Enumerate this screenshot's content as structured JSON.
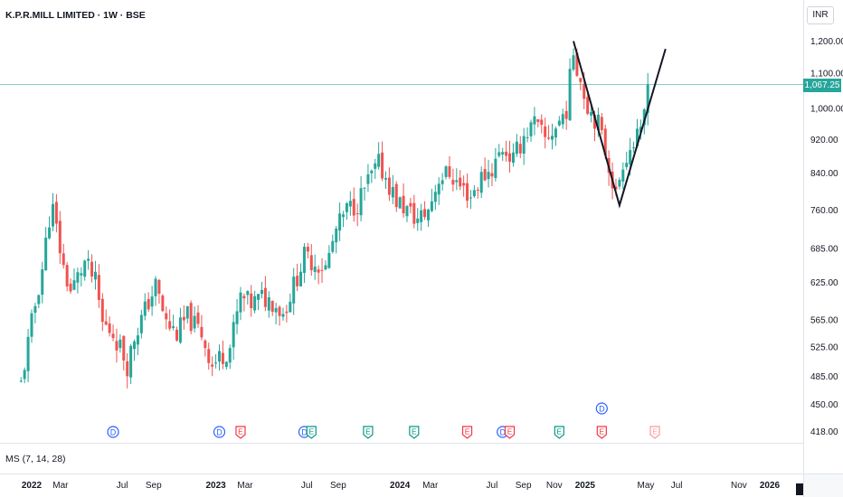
{
  "header": {
    "title": "K.P.R.MILL LIMITED · 1W · BSE"
  },
  "axis": {
    "currency": "INR"
  },
  "last_price": {
    "label": "1,067.25",
    "value": 1067.25
  },
  "indicator": {
    "label": "MS (7, 14, 28)"
  },
  "colors": {
    "up": "#26a69a",
    "down": "#ef5350",
    "last_line": "#26a69a",
    "event": "#2962ff",
    "drawing": "#131722"
  },
  "chart_data": {
    "type": "candlestick",
    "title": "K.P.R.MILL LIMITED · 1W · BSE",
    "y_scale": "log",
    "ylim": [
      400,
      1280
    ],
    "y_ticks": [
      1200,
      1100,
      1000,
      920,
      840,
      760,
      685,
      625,
      565,
      525,
      485,
      450,
      418
    ],
    "y_tick_labels": [
      "1,200.00",
      "1,100.00",
      "1,000.00",
      "920.00",
      "840.00",
      "760.00",
      "685.00",
      "625.00",
      "565.00",
      "525.00",
      "485.00",
      "450.00",
      "418.00"
    ],
    "x_range": [
      "2021-12-06",
      "2026-03-02"
    ],
    "x_ticks": [
      {
        "date": "2022-01-03",
        "label": "2022",
        "bold": true
      },
      {
        "date": "2022-03-01",
        "label": "Mar"
      },
      {
        "date": "2022-07-01",
        "label": "Jul"
      },
      {
        "date": "2022-09-01",
        "label": "Sep"
      },
      {
        "date": "2023-01-02",
        "label": "2023",
        "bold": true
      },
      {
        "date": "2023-03-01",
        "label": "Mar"
      },
      {
        "date": "2023-07-01",
        "label": "Jul"
      },
      {
        "date": "2023-09-01",
        "label": "Sep"
      },
      {
        "date": "2024-01-01",
        "label": "2024",
        "bold": true
      },
      {
        "date": "2024-03-01",
        "label": "Mar"
      },
      {
        "date": "2024-07-01",
        "label": "Jul"
      },
      {
        "date": "2024-09-01",
        "label": "Sep"
      },
      {
        "date": "2024-11-01",
        "label": "Nov"
      },
      {
        "date": "2025-01-01",
        "label": "2025",
        "bold": true
      },
      {
        "date": "2025-05-01",
        "label": "May"
      },
      {
        "date": "2025-07-01",
        "label": "Jul"
      },
      {
        "date": "2025-11-01",
        "label": "Nov"
      },
      {
        "date": "2026-01-01",
        "label": "2026",
        "bold": true
      }
    ],
    "close_path": [
      [
        "2021-12-13",
        475
      ],
      [
        "2022-01-03",
        560
      ],
      [
        "2022-01-24",
        650
      ],
      [
        "2022-02-07",
        745
      ],
      [
        "2022-02-14",
        760
      ],
      [
        "2022-03-07",
        650
      ],
      [
        "2022-03-21",
        610
      ],
      [
        "2022-04-18",
        660
      ],
      [
        "2022-05-09",
        625
      ],
      [
        "2022-05-23",
        560
      ],
      [
        "2022-06-13",
        545
      ],
      [
        "2022-06-27",
        525
      ],
      [
        "2022-07-11",
        500
      ],
      [
        "2022-07-25",
        540
      ],
      [
        "2022-08-15",
        580
      ],
      [
        "2022-09-05",
        620
      ],
      [
        "2022-09-26",
        560
      ],
      [
        "2022-10-17",
        545
      ],
      [
        "2022-11-07",
        570
      ],
      [
        "2022-12-05",
        545
      ],
      [
        "2022-12-26",
        500
      ],
      [
        "2023-01-09",
        510
      ],
      [
        "2023-01-30",
        525
      ],
      [
        "2023-02-20",
        600
      ],
      [
        "2023-03-13",
        590
      ],
      [
        "2023-04-03",
        600
      ],
      [
        "2023-04-24",
        595
      ],
      [
        "2023-05-15",
        575
      ],
      [
        "2023-06-05",
        620
      ],
      [
        "2023-06-26",
        670
      ],
      [
        "2023-07-17",
        660
      ],
      [
        "2023-08-07",
        650
      ],
      [
        "2023-08-28",
        720
      ],
      [
        "2023-09-18",
        760
      ],
      [
        "2023-10-09",
        775
      ],
      [
        "2023-10-30",
        820
      ],
      [
        "2023-11-20",
        860
      ],
      [
        "2023-12-04",
        830
      ],
      [
        "2023-12-25",
        780
      ],
      [
        "2024-01-15",
        760
      ],
      [
        "2024-02-05",
        740
      ],
      [
        "2024-02-26",
        760
      ],
      [
        "2024-03-18",
        830
      ],
      [
        "2024-04-08",
        840
      ],
      [
        "2024-04-29",
        810
      ],
      [
        "2024-05-20",
        790
      ],
      [
        "2024-06-10",
        830
      ],
      [
        "2024-07-01",
        850
      ],
      [
        "2024-07-22",
        900
      ],
      [
        "2024-08-12",
        870
      ],
      [
        "2024-09-02",
        930
      ],
      [
        "2024-09-23",
        960
      ],
      [
        "2024-10-14",
        920
      ],
      [
        "2024-11-04",
        950
      ],
      [
        "2024-11-25",
        1000
      ],
      [
        "2024-12-09",
        1170
      ],
      [
        "2024-12-23",
        1080
      ],
      [
        "2025-01-06",
        1010
      ],
      [
        "2025-01-27",
        960
      ],
      [
        "2025-02-17",
        860
      ],
      [
        "2025-03-03",
        790
      ],
      [
        "2025-03-17",
        870
      ],
      [
        "2025-04-07",
        910
      ],
      [
        "2025-04-21",
        930
      ],
      [
        "2025-05-05",
        1067.25
      ]
    ],
    "drawing": {
      "type": "polyline",
      "points": [
        [
          "2024-12-09",
          1200
        ],
        [
          "2025-03-10",
          770
        ],
        [
          "2025-06-09",
          1175
        ]
      ]
    },
    "events": [
      {
        "letter": "D",
        "date": "2022-06-13",
        "color": "blue"
      },
      {
        "letter": "D",
        "date": "2023-01-09",
        "color": "blue"
      },
      {
        "letter": "E",
        "date": "2023-02-20",
        "color": "red"
      },
      {
        "letter": "D",
        "date": "2023-06-26",
        "color": "blue"
      },
      {
        "letter": "E",
        "date": "2023-07-10",
        "color": "green"
      },
      {
        "letter": "E",
        "date": "2023-10-30",
        "color": "green"
      },
      {
        "letter": "E",
        "date": "2024-01-29",
        "color": "green"
      },
      {
        "letter": "E",
        "date": "2024-05-13",
        "color": "red"
      },
      {
        "letter": "D",
        "date": "2024-07-22",
        "color": "blue"
      },
      {
        "letter": "E",
        "date": "2024-08-05",
        "color": "red"
      },
      {
        "letter": "E",
        "date": "2024-11-11",
        "color": "green"
      },
      {
        "letter": "D",
        "date": "2025-02-03",
        "color": "blue",
        "row": 2
      },
      {
        "letter": "E",
        "date": "2025-02-03",
        "color": "red"
      },
      {
        "letter": "E",
        "date": "2025-05-19",
        "color": "red-outline"
      }
    ]
  }
}
